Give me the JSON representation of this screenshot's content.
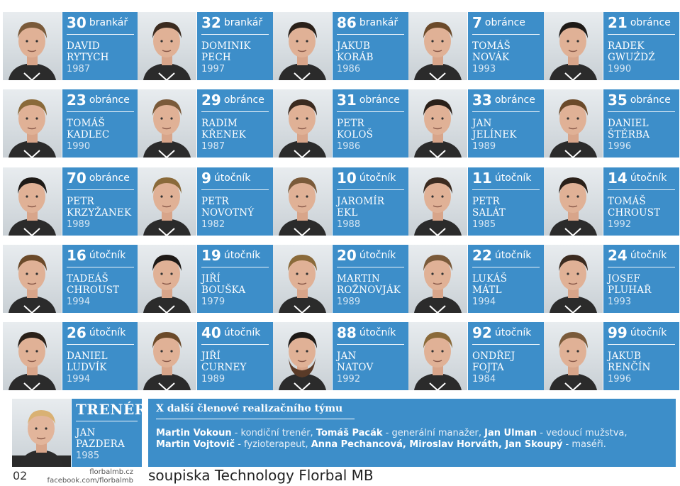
{
  "players": [
    {
      "number": "30",
      "position": "brankář",
      "first": "DAVID",
      "last": "RYTYCH",
      "year": "1987"
    },
    {
      "number": "32",
      "position": "brankář",
      "first": "DOMINIK",
      "last": "PECH",
      "year": "1997"
    },
    {
      "number": "86",
      "position": "brankář",
      "first": "JAKUB",
      "last": "KORÁB",
      "year": "1986"
    },
    {
      "number": "7",
      "position": "obránce",
      "first": "TOMÁŠ",
      "last": "NOVÁK",
      "year": "1993"
    },
    {
      "number": "21",
      "position": "obránce",
      "first": "RADEK",
      "last": "GWUŹDŹ",
      "year": "1990"
    },
    {
      "number": "23",
      "position": "obránce",
      "first": "TOMÁŠ",
      "last": "KADLEC",
      "year": "1990"
    },
    {
      "number": "29",
      "position": "obránce",
      "first": "RADIM",
      "last": "KŘENEK",
      "year": "1987"
    },
    {
      "number": "31",
      "position": "obránce",
      "first": "PETR",
      "last": "KOLOŠ",
      "year": "1986"
    },
    {
      "number": "33",
      "position": "obránce",
      "first": "JAN",
      "last": "JELÍNEK",
      "year": "1989"
    },
    {
      "number": "35",
      "position": "obránce",
      "first": "DANIEL",
      "last": "ŠTĚRBA",
      "year": "1996"
    },
    {
      "number": "70",
      "position": "obránce",
      "first": "PETR",
      "last": "KRZYŽANEK",
      "year": "1989"
    },
    {
      "number": "9",
      "position": "útočník",
      "first": "PETR",
      "last": "NOVOTNÝ",
      "year": "1982"
    },
    {
      "number": "10",
      "position": "útočník",
      "first": "JAROMÍR",
      "last": "EKL",
      "year": "1988"
    },
    {
      "number": "11",
      "position": "útočník",
      "first": "PETR",
      "last": "SALÁT",
      "year": "1985"
    },
    {
      "number": "14",
      "position": "útočník",
      "first": "TOMÁŠ",
      "last": "CHROUST",
      "year": "1992"
    },
    {
      "number": "16",
      "position": "útočník",
      "first": "TADEÁŠ",
      "last": "CHROUST",
      "year": "1994"
    },
    {
      "number": "19",
      "position": "útočník",
      "first": "JIŘÍ",
      "last": "BOUŠKA",
      "year": "1979"
    },
    {
      "number": "20",
      "position": "útočník",
      "first": "MARTIN",
      "last": "ROŽNOVJÁK",
      "year": "1989"
    },
    {
      "number": "22",
      "position": "útočník",
      "first": "LUKÁŠ",
      "last": "MÁTL",
      "year": "1994"
    },
    {
      "number": "24",
      "position": "útočník",
      "first": "JOSEF",
      "last": "PLUHAŘ",
      "year": "1993"
    },
    {
      "number": "26",
      "position": "útočník",
      "first": "DANIEL",
      "last": "LUDVÍK",
      "year": "1994"
    },
    {
      "number": "40",
      "position": "útočník",
      "first": "JIŘÍ",
      "last": "CURNEY",
      "year": "1989"
    },
    {
      "number": "88",
      "position": "útočník",
      "first": "JAN",
      "last": "NATOV",
      "year": "1992"
    },
    {
      "number": "92",
      "position": "útočník",
      "first": "ONDŘEJ",
      "last": "FOJTA",
      "year": "1984"
    },
    {
      "number": "99",
      "position": "útočník",
      "first": "JAKUB",
      "last": "RENČÍN",
      "year": "1996"
    }
  ],
  "coach": {
    "label": "TRENÉR",
    "first": "JAN",
    "last": "PAZDERA",
    "year": "1985"
  },
  "staff": {
    "title": "X další členové realizačního týmu",
    "line1": [
      {
        "name": "Martin Vokoun",
        "role": " - kondiční trenér, "
      },
      {
        "name": "Tomáš Pacák",
        "role": " - generální manažer, "
      },
      {
        "name": "Jan Ulman",
        "role": " - vedoucí mužstva,"
      }
    ],
    "line2": [
      {
        "name": "Martin Vojtovič",
        "role": " - fyzioterapeut, "
      },
      {
        "name": "Anna Pechancová, Miroslav Horváth, Jan Skoupý",
        "role": " - maséři."
      }
    ]
  },
  "footer": {
    "page_number": "02",
    "website": "florbalmb.cz",
    "facebook": "facebook.com/florbalmb",
    "title": "soupiska Technology Florbal MB"
  },
  "colors": {
    "accent": "#3d8ec9",
    "photo_bg": "#dde2e6"
  }
}
